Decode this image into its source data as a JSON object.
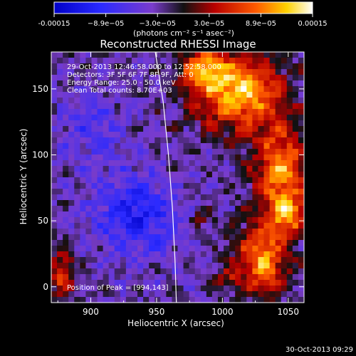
{
  "colorbar": {
    "tick_labels": [
      "-0.00015",
      "−8.9e−05",
      "−3.0e−05",
      "3.0e−05",
      "8.9e−05",
      "0.00015"
    ],
    "units_label": "(photons cm⁻² s⁻¹ asec⁻²)"
  },
  "footer": {
    "timestamp": "30-Oct-2013 09:29"
  },
  "chart_data": {
    "type": "heatmap",
    "title": "Reconstructed RHESSI Image",
    "xlabel": "Heliocentric X (arcsec)",
    "ylabel": "Heliocentric Y (arcsec)",
    "xlim": [
      870,
      1062
    ],
    "ylim": [
      -12,
      178
    ],
    "xticks": [
      900,
      950,
      1000,
      1050
    ],
    "yticks": [
      0,
      50,
      100,
      150
    ],
    "clim": [
      -0.00015,
      0.00015
    ],
    "colormap": "blue-purple-red-yellow-white",
    "annotations": [
      "29-Oct-2013 12:46:58.000  to  12:52:58.000",
      "Detectors: 3F 5F 6F 7F 8F 9F, Att: 0",
      "Energy Range: 25.0 - 50.0 keV",
      "Clean     Total counts: 8.70E+03"
    ],
    "peak_label": "Position of Peak = [994,143]",
    "peak": [
      994,
      143
    ],
    "limb_curve": [
      [
        949,
        178
      ],
      [
        955,
        140
      ],
      [
        959,
        100
      ],
      [
        962,
        60
      ],
      [
        964,
        20
      ],
      [
        965,
        -12
      ]
    ],
    "hot_regions": [
      {
        "x": 1012,
        "y": 148,
        "rx": 32,
        "ry": 28,
        "amp": 0.00015
      },
      {
        "x": 985,
        "y": 165,
        "rx": 16,
        "ry": 14,
        "amp": 0.00011
      },
      {
        "x": 1044,
        "y": 88,
        "rx": 20,
        "ry": 34,
        "amp": 0.00013
      },
      {
        "x": 1030,
        "y": 20,
        "rx": 20,
        "ry": 26,
        "amp": 0.00013
      },
      {
        "x": 1050,
        "y": 55,
        "rx": 14,
        "ry": 14,
        "amp": 0.0001
      },
      {
        "x": 878,
        "y": 10,
        "rx": 10,
        "ry": 18,
        "amp": 9e-05
      },
      {
        "x": 985,
        "y": 52,
        "rx": 8,
        "ry": 7,
        "amp": 5e-05
      },
      {
        "x": 1003,
        "y": 5,
        "rx": 8,
        "ry": 8,
        "amp": 5e-05
      }
    ],
    "cold_regions": [
      {
        "x": 935,
        "y": 55,
        "rx": 30,
        "ry": 30,
        "amp": -8e-05
      },
      {
        "x": 900,
        "y": 120,
        "rx": 25,
        "ry": 25,
        "amp": -4e-05
      }
    ]
  }
}
